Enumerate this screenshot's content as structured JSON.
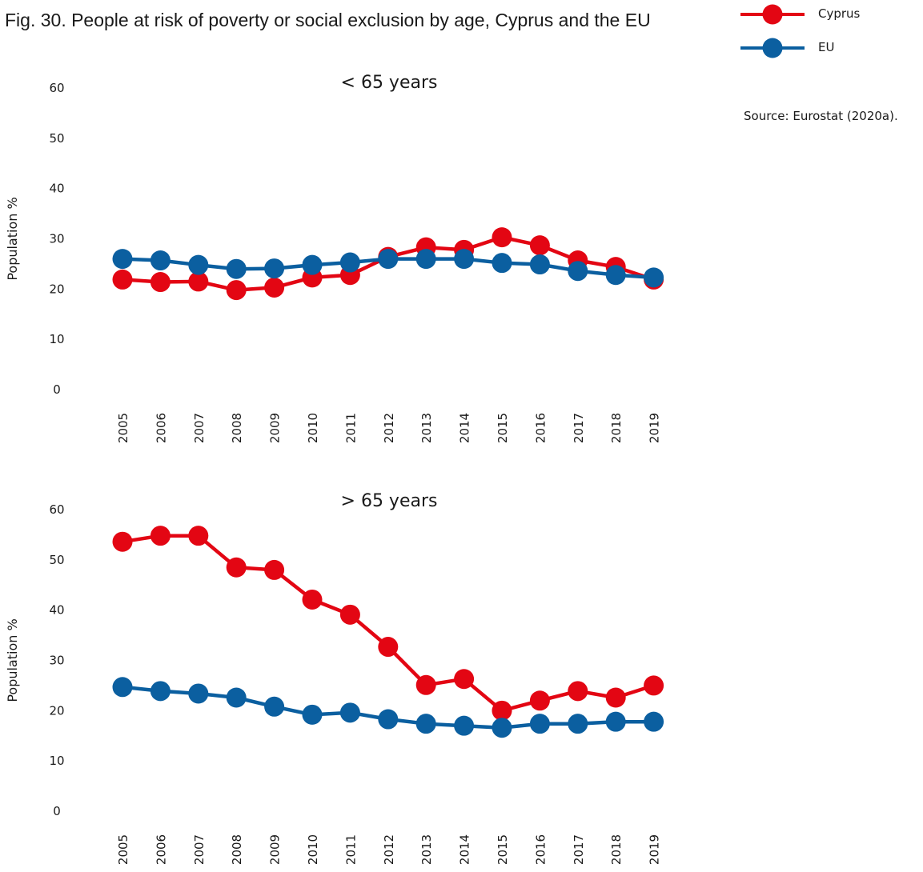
{
  "figure_title": "Fig. 30. People at risk of poverty or social exclusion by age, Cyprus and the EU",
  "source": "Source: Eurostat (2020a).",
  "legend": [
    {
      "name": "Cyprus",
      "color": "#e30613"
    },
    {
      "name": "EU",
      "color": "#0b5fa0"
    }
  ],
  "chart_data": [
    {
      "type": "line",
      "title": "< 65 years",
      "xlabel": "",
      "ylabel": "Population %",
      "ylim": [
        0,
        60
      ],
      "yticks": [
        "0",
        "10",
        "20",
        "30",
        "40",
        "50",
        "60"
      ],
      "categories": [
        "2005",
        "2006",
        "2007",
        "2008",
        "2009",
        "2010",
        "2011",
        "2012",
        "2013",
        "2014",
        "2015",
        "2016",
        "2017",
        "2018",
        "2019"
      ],
      "grid": false,
      "legend": "top-right",
      "series": [
        {
          "name": "Cyprus",
          "color": "#e30613",
          "values": [
            21.9,
            21.4,
            21.5,
            19.8,
            20.3,
            22.3,
            22.8,
            26.4,
            28.3,
            27.8,
            30.3,
            28.7,
            25.7,
            24.4,
            21.9
          ]
        },
        {
          "name": "EU",
          "color": "#0b5fa0",
          "values": [
            26.0,
            25.7,
            24.8,
            24.0,
            24.1,
            24.8,
            25.3,
            26.0,
            26.0,
            26.0,
            25.2,
            24.9,
            23.6,
            22.8,
            22.3
          ]
        }
      ]
    },
    {
      "type": "line",
      "title": "> 65 years",
      "xlabel": "",
      "ylabel": "Population %",
      "ylim": [
        0,
        60
      ],
      "yticks": [
        "0",
        "10",
        "20",
        "30",
        "40",
        "50",
        "60"
      ],
      "categories": [
        "2005",
        "2006",
        "2007",
        "2008",
        "2009",
        "2010",
        "2011",
        "2012",
        "2013",
        "2014",
        "2015",
        "2016",
        "2017",
        "2018",
        "2019"
      ],
      "grid": false,
      "legend": "top-right",
      "series": [
        {
          "name": "Cyprus",
          "color": "#e30613",
          "values": [
            53.6,
            54.8,
            54.8,
            48.5,
            48.0,
            42.1,
            39.1,
            32.7,
            25.1,
            26.3,
            20.0,
            22.0,
            23.9,
            22.6,
            25.0
          ]
        },
        {
          "name": "EU",
          "color": "#0b5fa0",
          "values": [
            24.7,
            23.9,
            23.4,
            22.6,
            20.8,
            19.2,
            19.6,
            18.3,
            17.4,
            17.0,
            16.6,
            17.4,
            17.4,
            17.8,
            17.8
          ]
        }
      ]
    }
  ]
}
